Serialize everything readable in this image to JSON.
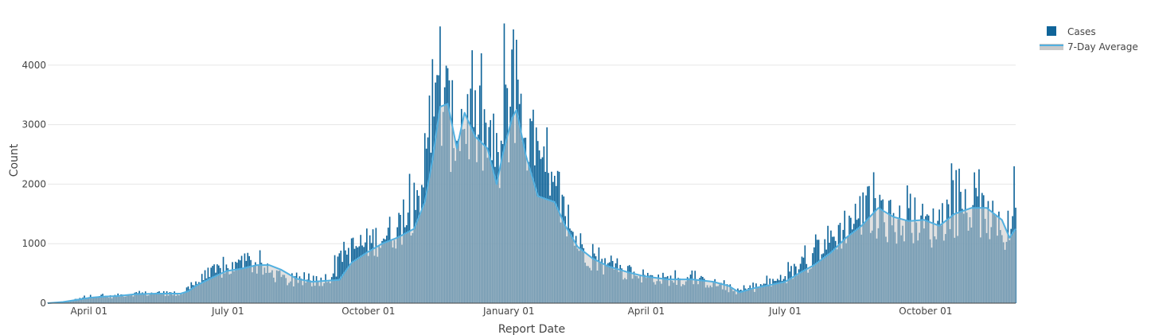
{
  "chart_data": {
    "type": "bar",
    "xlabel": "Report Date",
    "ylabel": "Count",
    "x_range": [
      "2020-03-05",
      "2021-11-29"
    ],
    "ylim": [
      0,
      4800
    ],
    "y_ticks": [
      0,
      1000,
      2000,
      3000,
      4000
    ],
    "x_ticks": [
      {
        "date": "2020-04-01",
        "label": "April 01"
      },
      {
        "date": "2020-07-01",
        "label": "July 01"
      },
      {
        "date": "2020-10-01",
        "label": "October 01"
      },
      {
        "date": "2021-01-01",
        "label": "January 01"
      },
      {
        "date": "2021-04-01",
        "label": "April 01"
      },
      {
        "date": "2021-07-01",
        "label": "July 01"
      },
      {
        "date": "2021-10-01",
        "label": "October 01"
      }
    ],
    "grid": "horizontal",
    "legend_position": "top-right",
    "colors": {
      "cases_bar": "#0f6499",
      "average_line": "#52b0e0",
      "average_fill": "#c9c9c9",
      "grid": "#e6e6e6"
    },
    "series": [
      {
        "name": "Cases",
        "kind": "bar",
        "points": [
          [
            "2020-03-05",
            5
          ],
          [
            "2020-03-10",
            10
          ],
          [
            "2020-03-15",
            20
          ],
          [
            "2020-03-20",
            40
          ],
          [
            "2020-03-25",
            70
          ],
          [
            "2020-03-30",
            100
          ],
          [
            "2020-04-05",
            130
          ],
          [
            "2020-04-10",
            120
          ],
          [
            "2020-04-15",
            110
          ],
          [
            "2020-04-20",
            130
          ],
          [
            "2020-04-25",
            150
          ],
          [
            "2020-04-30",
            160
          ],
          [
            "2020-05-05",
            170
          ],
          [
            "2020-05-10",
            160
          ],
          [
            "2020-05-15",
            175
          ],
          [
            "2020-05-20",
            170
          ],
          [
            "2020-05-25",
            165
          ],
          [
            "2020-05-31",
            160
          ],
          [
            "2020-06-05",
            260
          ],
          [
            "2020-06-10",
            350
          ],
          [
            "2020-06-15",
            420
          ],
          [
            "2020-06-20",
            500
          ],
          [
            "2020-06-25",
            560
          ],
          [
            "2020-06-30",
            590
          ],
          [
            "2020-07-05",
            610
          ],
          [
            "2020-07-10",
            650
          ],
          [
            "2020-07-15",
            700
          ],
          [
            "2020-07-20",
            650
          ],
          [
            "2020-07-25",
            560
          ],
          [
            "2020-07-31",
            500
          ],
          [
            "2020-08-05",
            430
          ],
          [
            "2020-08-10",
            380
          ],
          [
            "2020-08-15",
            360
          ],
          [
            "2020-08-20",
            370
          ],
          [
            "2020-08-25",
            380
          ],
          [
            "2020-08-31",
            400
          ],
          [
            "2020-09-05",
            440
          ],
          [
            "2020-09-10",
            600
          ],
          [
            "2020-09-15",
            820
          ],
          [
            "2020-09-20",
            920
          ],
          [
            "2020-09-25",
            990
          ],
          [
            "2020-09-30",
            1020
          ],
          [
            "2020-10-05",
            1080
          ],
          [
            "2020-10-10",
            1150
          ],
          [
            "2020-10-15",
            1200
          ],
          [
            "2020-10-20",
            1300
          ],
          [
            "2020-10-25",
            1400
          ],
          [
            "2020-10-31",
            1700
          ],
          [
            "2020-11-05",
            2100
          ],
          [
            "2020-11-10",
            2800
          ],
          [
            "2020-11-15",
            3300
          ],
          [
            "2020-11-20",
            3500
          ],
          [
            "2020-11-25",
            3000
          ],
          [
            "2020-11-30",
            3100
          ],
          [
            "2020-12-05",
            3200
          ],
          [
            "2020-12-10",
            3000
          ],
          [
            "2020-12-15",
            2900
          ],
          [
            "2020-12-20",
            2800
          ],
          [
            "2020-12-25",
            2300
          ],
          [
            "2020-12-31",
            3200
          ],
          [
            "2021-01-05",
            3300
          ],
          [
            "2021-01-10",
            3100
          ],
          [
            "2021-01-15",
            2800
          ],
          [
            "2021-01-20",
            2400
          ],
          [
            "2021-01-25",
            2100
          ],
          [
            "2021-01-31",
            1800
          ],
          [
            "2021-02-05",
            1600
          ],
          [
            "2021-02-10",
            1300
          ],
          [
            "2021-02-15",
            1050
          ],
          [
            "2021-02-20",
            900
          ],
          [
            "2021-02-25",
            750
          ],
          [
            "2021-02-28",
            720
          ],
          [
            "2021-03-05",
            650
          ],
          [
            "2021-03-10",
            600
          ],
          [
            "2021-03-15",
            550
          ],
          [
            "2021-03-20",
            520
          ],
          [
            "2021-03-25",
            500
          ],
          [
            "2021-03-31",
            470
          ],
          [
            "2021-04-05",
            440
          ],
          [
            "2021-04-10",
            420
          ],
          [
            "2021-04-15",
            410
          ],
          [
            "2021-04-20",
            400
          ],
          [
            "2021-04-25",
            400
          ],
          [
            "2021-04-30",
            390
          ],
          [
            "2021-05-05",
            380
          ],
          [
            "2021-05-10",
            360
          ],
          [
            "2021-05-15",
            340
          ],
          [
            "2021-05-20",
            300
          ],
          [
            "2021-05-25",
            250
          ],
          [
            "2021-05-31",
            200
          ],
          [
            "2021-06-05",
            230
          ],
          [
            "2021-06-10",
            260
          ],
          [
            "2021-06-15",
            300
          ],
          [
            "2021-06-20",
            330
          ],
          [
            "2021-06-25",
            380
          ],
          [
            "2021-06-30",
            450
          ],
          [
            "2021-07-05",
            520
          ],
          [
            "2021-07-10",
            600
          ],
          [
            "2021-07-15",
            700
          ],
          [
            "2021-07-20",
            850
          ],
          [
            "2021-07-25",
            1000
          ],
          [
            "2021-07-31",
            1100
          ],
          [
            "2021-08-05",
            1200
          ],
          [
            "2021-08-10",
            1350
          ],
          [
            "2021-08-15",
            1450
          ],
          [
            "2021-08-20",
            1550
          ],
          [
            "2021-08-25",
            1600
          ],
          [
            "2021-08-31",
            1500
          ],
          [
            "2021-09-05",
            1450
          ],
          [
            "2021-09-10",
            1400
          ],
          [
            "2021-09-15",
            1350
          ],
          [
            "2021-09-20",
            1400
          ],
          [
            "2021-09-25",
            1450
          ],
          [
            "2021-09-30",
            1350
          ],
          [
            "2021-10-05",
            1300
          ],
          [
            "2021-10-10",
            1400
          ],
          [
            "2021-10-15",
            1500
          ],
          [
            "2021-10-20",
            1550
          ],
          [
            "2021-10-25",
            1600
          ],
          [
            "2021-10-31",
            1580
          ],
          [
            "2021-11-05",
            1550
          ],
          [
            "2021-11-10",
            1500
          ],
          [
            "2021-11-15",
            1350
          ],
          [
            "2021-11-20",
            1200
          ],
          [
            "2021-11-25",
            1150
          ],
          [
            "2021-11-29",
            2000
          ]
        ],
        "annotated_peaks": [
          [
            "2020-11-12",
            4100
          ],
          [
            "2020-11-17",
            4650
          ],
          [
            "2020-12-08",
            4250
          ],
          [
            "2020-12-29",
            4700
          ],
          [
            "2021-01-04",
            4600
          ],
          [
            "2021-08-28",
            2200
          ],
          [
            "2021-10-18",
            2350
          ],
          [
            "2021-11-05",
            2250
          ],
          [
            "2021-11-28",
            2300
          ]
        ]
      },
      {
        "name": "7-Day Average",
        "kind": "area",
        "points": [
          [
            "2020-03-05",
            0
          ],
          [
            "2020-03-15",
            20
          ],
          [
            "2020-03-25",
            60
          ],
          [
            "2020-04-01",
            90
          ],
          [
            "2020-04-10",
            110
          ],
          [
            "2020-04-20",
            120
          ],
          [
            "2020-05-01",
            150
          ],
          [
            "2020-05-15",
            160
          ],
          [
            "2020-05-31",
            160
          ],
          [
            "2020-06-05",
            200
          ],
          [
            "2020-06-10",
            290
          ],
          [
            "2020-06-20",
            420
          ],
          [
            "2020-06-30",
            540
          ],
          [
            "2020-07-10",
            580
          ],
          [
            "2020-07-20",
            640
          ],
          [
            "2020-07-28",
            640
          ],
          [
            "2020-08-05",
            560
          ],
          [
            "2020-08-15",
            410
          ],
          [
            "2020-08-25",
            360
          ],
          [
            "2020-09-05",
            380
          ],
          [
            "2020-09-12",
            390
          ],
          [
            "2020-09-20",
            680
          ],
          [
            "2020-09-30",
            850
          ],
          [
            "2020-10-10",
            1000
          ],
          [
            "2020-10-20",
            1100
          ],
          [
            "2020-10-31",
            1250
          ],
          [
            "2020-11-07",
            1700
          ],
          [
            "2020-11-12",
            2400
          ],
          [
            "2020-11-17",
            3300
          ],
          [
            "2020-11-22",
            3350
          ],
          [
            "2020-11-28",
            2600
          ],
          [
            "2020-12-03",
            3200
          ],
          [
            "2020-12-10",
            2800
          ],
          [
            "2020-12-18",
            2600
          ],
          [
            "2020-12-24",
            2000
          ],
          [
            "2020-12-28",
            2500
          ],
          [
            "2021-01-03",
            3100
          ],
          [
            "2021-01-06",
            3250
          ],
          [
            "2021-01-12",
            2500
          ],
          [
            "2021-01-20",
            1800
          ],
          [
            "2021-01-31",
            1700
          ],
          [
            "2021-02-07",
            1300
          ],
          [
            "2021-02-15",
            950
          ],
          [
            "2021-02-25",
            750
          ],
          [
            "2021-03-07",
            620
          ],
          [
            "2021-03-20",
            520
          ],
          [
            "2021-03-31",
            450
          ],
          [
            "2021-04-15",
            400
          ],
          [
            "2021-05-01",
            400
          ],
          [
            "2021-05-15",
            360
          ],
          [
            "2021-05-25",
            290
          ],
          [
            "2021-06-01",
            180
          ],
          [
            "2021-06-10",
            250
          ],
          [
            "2021-06-20",
            300
          ],
          [
            "2021-07-01",
            360
          ],
          [
            "2021-07-10",
            500
          ],
          [
            "2021-07-20",
            640
          ],
          [
            "2021-07-31",
            850
          ],
          [
            "2021-08-10",
            1100
          ],
          [
            "2021-08-20",
            1300
          ],
          [
            "2021-08-31",
            1600
          ],
          [
            "2021-09-10",
            1450
          ],
          [
            "2021-09-20",
            1380
          ],
          [
            "2021-09-30",
            1400
          ],
          [
            "2021-10-10",
            1300
          ],
          [
            "2021-10-20",
            1500
          ],
          [
            "2021-10-31",
            1600
          ],
          [
            "2021-11-10",
            1600
          ],
          [
            "2021-11-20",
            1400
          ],
          [
            "2021-11-25",
            1100
          ],
          [
            "2021-11-29",
            1250
          ]
        ]
      }
    ]
  }
}
